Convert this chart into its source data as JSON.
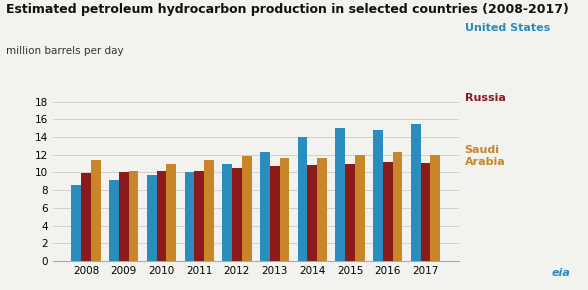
{
  "title": "Estimated petroleum hydrocarbon production in selected countries (2008-2017)",
  "subtitle": "million barrels per day",
  "years": [
    2008,
    2009,
    2010,
    2011,
    2012,
    2013,
    2014,
    2015,
    2016,
    2017
  ],
  "united_states": [
    8.6,
    9.1,
    9.7,
    10.1,
    11.0,
    12.3,
    14.0,
    15.0,
    14.8,
    15.5
  ],
  "russia": [
    9.9,
    10.0,
    10.2,
    10.2,
    10.5,
    10.7,
    10.8,
    10.9,
    11.2,
    11.1
  ],
  "saudi_arabia": [
    11.4,
    10.2,
    10.9,
    11.4,
    11.8,
    11.6,
    11.6,
    12.0,
    12.3,
    12.0
  ],
  "color_us": "#2b8cbe",
  "color_russia": "#8b1a1a",
  "color_saudi": "#c8852a",
  "ylim": [
    0,
    18
  ],
  "yticks": [
    0,
    2,
    4,
    6,
    8,
    10,
    12,
    14,
    16,
    18
  ],
  "bar_width": 0.26,
  "background_color": "#f2f2ee",
  "grid_color": "#d0d0d0",
  "label_us": "United States",
  "label_russia": "Russia",
  "label_saudi": "Saudi\nArabia",
  "title_fontsize": 9.0,
  "subtitle_fontsize": 7.5,
  "tick_fontsize": 7.5
}
